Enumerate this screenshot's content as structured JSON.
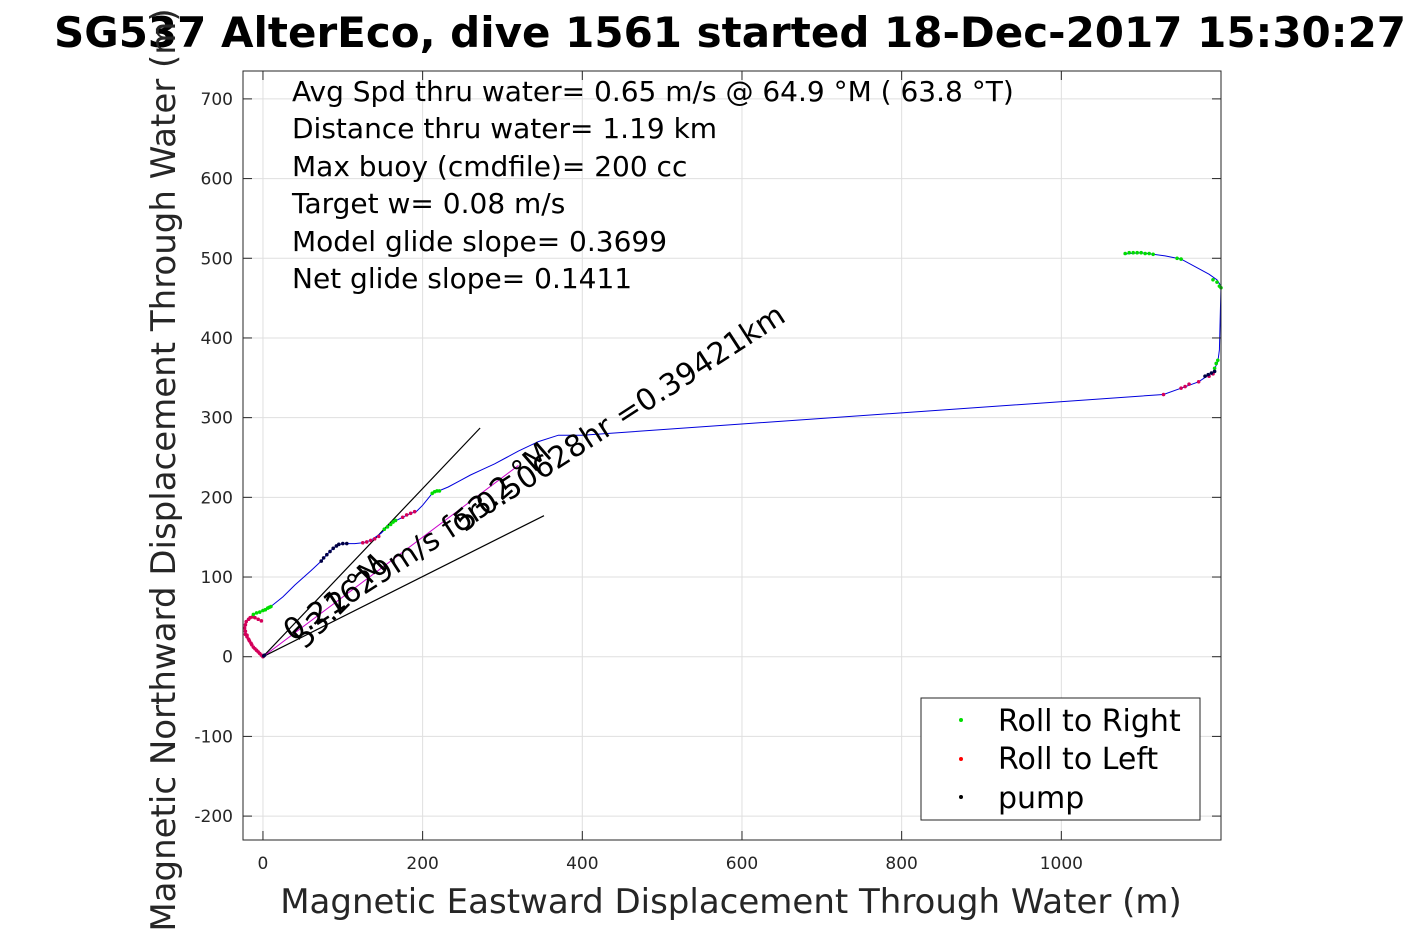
{
  "chart_data": {
    "type": "line",
    "title": "SG537 AlterEco, dive 1561 started 18-Dec-2017 15:30:27",
    "xlabel": "Magnetic Eastward Displacement Through Water (m)",
    "ylabel": "Magnetic Northward Displacement Through Water (m)",
    "xlim": [
      -25,
      1200
    ],
    "ylim": [
      -230,
      735
    ],
    "xticks": [
      0,
      200,
      400,
      600,
      800,
      1000
    ],
    "yticks": [
      -200,
      -100,
      0,
      100,
      200,
      300,
      400,
      500,
      600,
      700
    ],
    "grid": true,
    "legend_position": "bottom-right",
    "annotations": [
      "Avg Spd thru water=  0.65 m/s @  64.9 °M ( 63.8 °T)",
      "Distance thru water=  1.19 km",
      "Max buoy (cmdfile)= 200 cc",
      "Target w= 0.08 m/s",
      "Model glide slope= 0.3699",
      "Net glide slope= 0.1411"
    ],
    "heading_labels": [
      "53.2 °M",
      "53.2 °M"
    ],
    "current_label": "0.21629m/s for0.50628hr =0.39421km",
    "legend": [
      {
        "label": "Roll to Right",
        "color": "#00dd00"
      },
      {
        "label": "Roll to Left",
        "color": "#ff0000"
      },
      {
        "label": "pump",
        "color": "#000000"
      }
    ],
    "track": [
      [
        0,
        0
      ],
      [
        -5,
        5
      ],
      [
        -12,
        12
      ],
      [
        -18,
        22
      ],
      [
        -22,
        32
      ],
      [
        -23,
        40
      ],
      [
        -20,
        46
      ],
      [
        -14,
        50
      ],
      [
        -12,
        53
      ],
      [
        -8,
        55
      ],
      [
        0,
        58
      ],
      [
        5,
        61
      ],
      [
        10,
        63
      ],
      [
        25,
        75
      ],
      [
        40,
        90
      ],
      [
        60,
        108
      ],
      [
        73,
        120
      ],
      [
        80,
        128
      ],
      [
        88,
        136
      ],
      [
        95,
        141
      ],
      [
        105,
        142
      ],
      [
        115,
        142
      ],
      [
        125,
        143
      ],
      [
        135,
        146
      ],
      [
        148,
        155
      ],
      [
        158,
        165
      ],
      [
        165,
        170
      ],
      [
        175,
        175
      ],
      [
        185,
        180
      ],
      [
        192,
        182
      ],
      [
        200,
        190
      ],
      [
        212,
        205
      ],
      [
        220,
        208
      ],
      [
        232,
        213
      ],
      [
        245,
        220
      ],
      [
        260,
        228
      ],
      [
        275,
        235
      ],
      [
        290,
        242
      ],
      [
        305,
        250
      ],
      [
        320,
        258
      ],
      [
        345,
        270
      ],
      [
        370,
        278
      ],
      [
        400,
        278
      ],
      [
        1128,
        329
      ],
      [
        1150,
        337
      ],
      [
        1172,
        345
      ],
      [
        1190,
        357
      ],
      [
        1196,
        370
      ],
      [
        1198,
        385
      ],
      [
        1200,
        465
      ],
      [
        1195,
        473
      ],
      [
        1185,
        480
      ],
      [
        1150,
        499
      ],
      [
        1130,
        503
      ],
      [
        1115,
        505
      ],
      [
        1100,
        507
      ],
      [
        1085,
        506
      ],
      [
        1078,
        505
      ]
    ],
    "roll_right": [
      [
        -12,
        53
      ],
      [
        -8,
        55
      ],
      [
        -4,
        56
      ],
      [
        0,
        58
      ],
      [
        3,
        59
      ],
      [
        6,
        61
      ],
      [
        8,
        62
      ],
      [
        10,
        63
      ],
      [
        152,
        160
      ],
      [
        156,
        163
      ],
      [
        160,
        166
      ],
      [
        163,
        169
      ],
      [
        166,
        171
      ],
      [
        212,
        205
      ],
      [
        215,
        207
      ],
      [
        218,
        208
      ],
      [
        221,
        208
      ],
      [
        1080,
        506
      ],
      [
        1085,
        507
      ],
      [
        1090,
        507
      ],
      [
        1095,
        507
      ],
      [
        1100,
        507
      ],
      [
        1105,
        506
      ],
      [
        1110,
        506
      ],
      [
        1115,
        505
      ],
      [
        1145,
        500
      ],
      [
        1150,
        499
      ],
      [
        1190,
        473
      ],
      [
        1195,
        470
      ],
      [
        1198,
        465
      ],
      [
        1200,
        463
      ],
      [
        1192,
        362
      ],
      [
        1194,
        368
      ],
      [
        1196,
        372
      ]
    ],
    "roll_left": [
      [
        0,
        0
      ],
      [
        -4,
        4
      ],
      [
        -8,
        8
      ],
      [
        -12,
        12
      ],
      [
        -15,
        17
      ],
      [
        -18,
        22
      ],
      [
        -20,
        27
      ],
      [
        -22,
        32
      ],
      [
        -23,
        36
      ],
      [
        -22,
        40
      ],
      [
        -21,
        44
      ],
      [
        -18,
        47
      ],
      [
        -16,
        49
      ],
      [
        -13,
        50
      ],
      [
        -10,
        49
      ],
      [
        -6,
        47
      ],
      [
        -2,
        45
      ],
      [
        -22,
        28
      ],
      [
        -20,
        25
      ],
      [
        -17,
        20
      ],
      [
        -14,
        15
      ],
      [
        -10,
        10
      ],
      [
        -6,
        6
      ],
      [
        -2,
        2
      ],
      [
        125,
        143
      ],
      [
        130,
        144
      ],
      [
        135,
        146
      ],
      [
        140,
        148
      ],
      [
        145,
        151
      ],
      [
        175,
        175
      ],
      [
        180,
        178
      ],
      [
        185,
        180
      ],
      [
        190,
        182
      ],
      [
        1128,
        329
      ],
      [
        1150,
        337
      ],
      [
        1155,
        339
      ],
      [
        1160,
        342
      ],
      [
        1172,
        345
      ],
      [
        1185,
        352
      ],
      [
        1190,
        355
      ]
    ],
    "pump": [
      [
        73,
        120
      ],
      [
        76,
        124
      ],
      [
        80,
        128
      ],
      [
        84,
        132
      ],
      [
        88,
        136
      ],
      [
        92,
        139
      ],
      [
        95,
        141
      ],
      [
        100,
        142
      ],
      [
        105,
        142
      ],
      [
        1180,
        352
      ],
      [
        1184,
        354
      ],
      [
        1188,
        356
      ],
      [
        1192,
        358
      ],
      [
        1,
        1
      ],
      [
        2,
        2
      ]
    ]
  }
}
